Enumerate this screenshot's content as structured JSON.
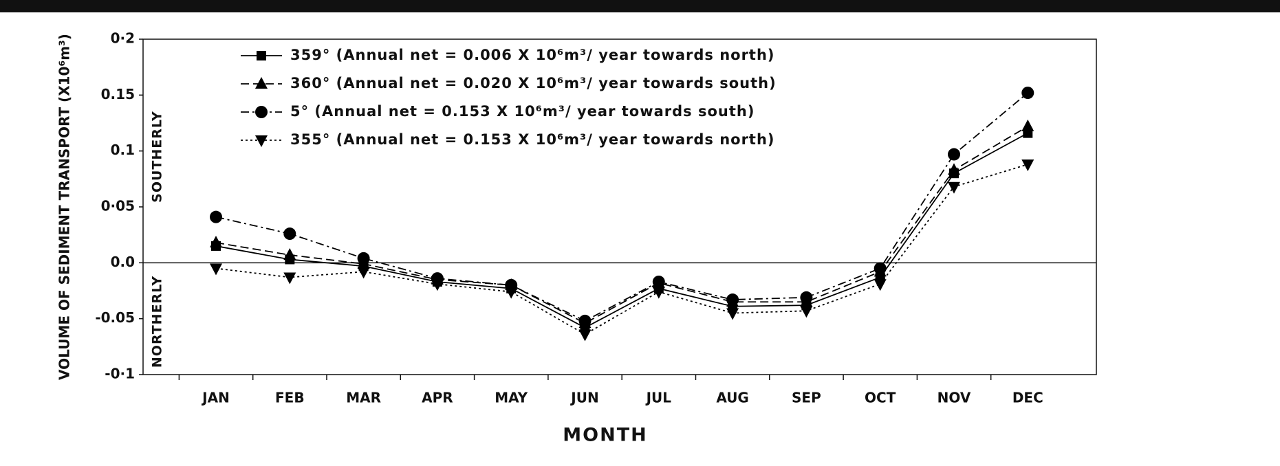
{
  "chart_data": {
    "type": "line",
    "x_label": "MONTH",
    "y_label": "VOLUME OF SEDIMENT TRANSPORT (X10⁶m³)",
    "annotations": [
      "SOUTHERLY",
      "NORTHERLY"
    ],
    "categories": [
      "JAN",
      "FEB",
      "MAR",
      "APR",
      "MAY",
      "JUN",
      "JUL",
      "AUG",
      "SEP",
      "OCT",
      "NOV",
      "DEC"
    ],
    "ylim": [
      -0.1,
      0.2
    ],
    "yticks": [
      {
        "value": -0.1,
        "label": "-0·1"
      },
      -0.05,
      {
        "value": 0,
        "label": "0.0"
      },
      {
        "value": 0.05,
        "label": "0·05"
      },
      0.1,
      0.15,
      {
        "value": 0.2,
        "label": "0·2"
      }
    ],
    "series": [
      {
        "name": "359° (Annual net = 0.006 X 10⁶m³/ year towards north)",
        "color": "#000000",
        "marker": "square",
        "linestyle": "solid",
        "values": [
          0.015,
          0.003,
          -0.003,
          -0.017,
          -0.023,
          -0.058,
          -0.023,
          -0.039,
          -0.038,
          -0.013,
          0.08,
          0.116
        ]
      },
      {
        "name": "360° (Annual net = 0.020 X 10⁶m³/ year towards south)",
        "color": "#000000",
        "marker": "triangle-up",
        "linestyle": "dashed",
        "values": [
          0.018,
          0.007,
          -0.001,
          -0.015,
          -0.02,
          -0.054,
          -0.018,
          -0.035,
          -0.035,
          -0.008,
          0.083,
          0.122
        ]
      },
      {
        "name": "5° (Annual net = 0.153 X 10⁶m³/ year towards south)",
        "color": "#000000",
        "marker": "circle",
        "linestyle": "dashdot",
        "values": [
          0.041,
          0.026,
          0.004,
          -0.014,
          -0.02,
          -0.052,
          -0.017,
          -0.033,
          -0.031,
          -0.005,
          0.097,
          0.152
        ]
      },
      {
        "name": "355° (Annual net = 0.153 X 10⁶m³/ year towards north)",
        "color": "#000000",
        "marker": "triangle-down",
        "linestyle": "dotted",
        "values": [
          -0.005,
          -0.013,
          -0.008,
          -0.019,
          -0.026,
          -0.064,
          -0.026,
          -0.045,
          -0.043,
          -0.019,
          0.068,
          0.088
        ]
      }
    ]
  }
}
